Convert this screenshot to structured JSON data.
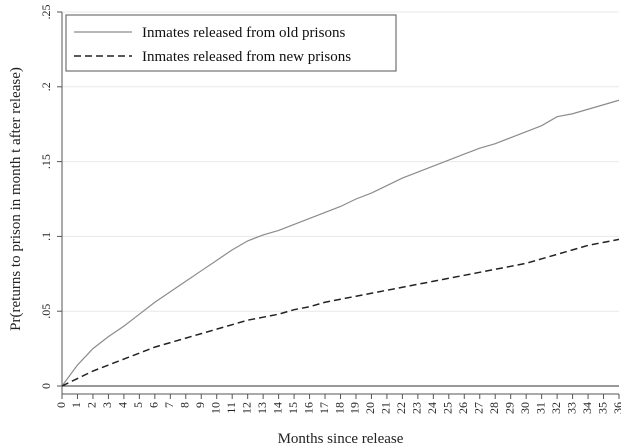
{
  "chart_data": {
    "type": "line",
    "xlabel": "Months since release",
    "ylabel": "Pr(returns to prison in month t after release)",
    "x": [
      0,
      1,
      2,
      3,
      4,
      5,
      6,
      7,
      8,
      9,
      10,
      11,
      12,
      13,
      14,
      15,
      16,
      17,
      18,
      19,
      20,
      21,
      22,
      23,
      24,
      25,
      26,
      27,
      28,
      29,
      30,
      31,
      32,
      33,
      34,
      35,
      36
    ],
    "xticks": [
      "0",
      "1",
      "2",
      "3",
      "4",
      "5",
      "6",
      "7",
      "8",
      "9",
      "10",
      "11",
      "12",
      "13",
      "14",
      "15",
      "16",
      "17",
      "18",
      "19",
      "20",
      "21",
      "22",
      "23",
      "24",
      "25",
      "26",
      "27",
      "28",
      "29",
      "30",
      "31",
      "32",
      "33",
      "34",
      "35",
      "36"
    ],
    "ylim": [
      0,
      0.25
    ],
    "yticks": [
      {
        "value": 0,
        "label": "0"
      },
      {
        "value": 0.05,
        "label": ".05"
      },
      {
        "value": 0.1,
        "label": ".1"
      },
      {
        "value": 0.15,
        "label": ".15"
      },
      {
        "value": 0.2,
        "label": ".2"
      },
      {
        "value": 0.25,
        "label": ".25"
      }
    ],
    "grid": true,
    "legend_position": "top-left",
    "series": [
      {
        "name": "Inmates released from old prisons",
        "style": "solid",
        "color": "#8c8c8c",
        "values": [
          0.0,
          0.014,
          0.025,
          0.033,
          0.04,
          0.048,
          0.056,
          0.063,
          0.07,
          0.077,
          0.084,
          0.091,
          0.097,
          0.101,
          0.104,
          0.108,
          0.112,
          0.116,
          0.12,
          0.125,
          0.129,
          0.134,
          0.139,
          0.143,
          0.147,
          0.151,
          0.155,
          0.159,
          0.162,
          0.166,
          0.17,
          0.174,
          0.18,
          0.182,
          0.185,
          0.188,
          0.191
        ]
      },
      {
        "name": "Inmates released from new prisons",
        "style": "dashed",
        "color": "#222222",
        "values": [
          0.0,
          0.005,
          0.01,
          0.014,
          0.018,
          0.022,
          0.026,
          0.029,
          0.032,
          0.035,
          0.038,
          0.041,
          0.044,
          0.046,
          0.048,
          0.051,
          0.053,
          0.056,
          0.058,
          0.06,
          0.062,
          0.064,
          0.066,
          0.068,
          0.07,
          0.072,
          0.074,
          0.076,
          0.078,
          0.08,
          0.082,
          0.085,
          0.088,
          0.091,
          0.094,
          0.096,
          0.098
        ]
      }
    ]
  }
}
